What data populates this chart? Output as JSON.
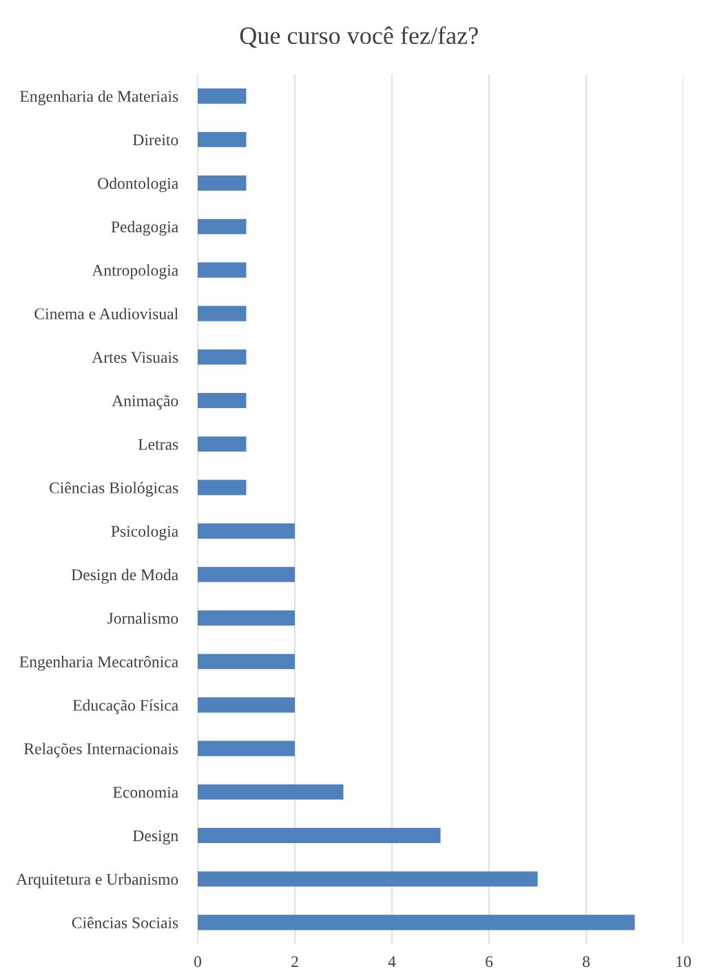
{
  "chart_data": {
    "type": "bar",
    "orientation": "horizontal",
    "title": "Que curso você fez/faz?",
    "categories": [
      "Engenharia de Materiais",
      "Direito",
      "Odontologia",
      "Pedagogia",
      "Antropologia",
      "Cinema e Audiovisual",
      "Artes Visuais",
      "Animação",
      "Letras",
      "Ciências Biológicas",
      "Psicologia",
      "Design de Moda",
      "Jornalismo",
      "Engenharia Mecatrônica",
      "Educação Física",
      "Relações Internacionais",
      "Economia",
      "Design",
      "Arquitetura e Urbanismo",
      "Ciências Sociais"
    ],
    "values": [
      1,
      1,
      1,
      1,
      1,
      1,
      1,
      1,
      1,
      1,
      2,
      2,
      2,
      2,
      2,
      2,
      3,
      5,
      7,
      9
    ],
    "color": "#4f81bd",
    "xlim": [
      0,
      10
    ],
    "xticks": [
      0,
      2,
      4,
      6,
      8,
      10
    ],
    "grid": "x",
    "legend": false
  }
}
